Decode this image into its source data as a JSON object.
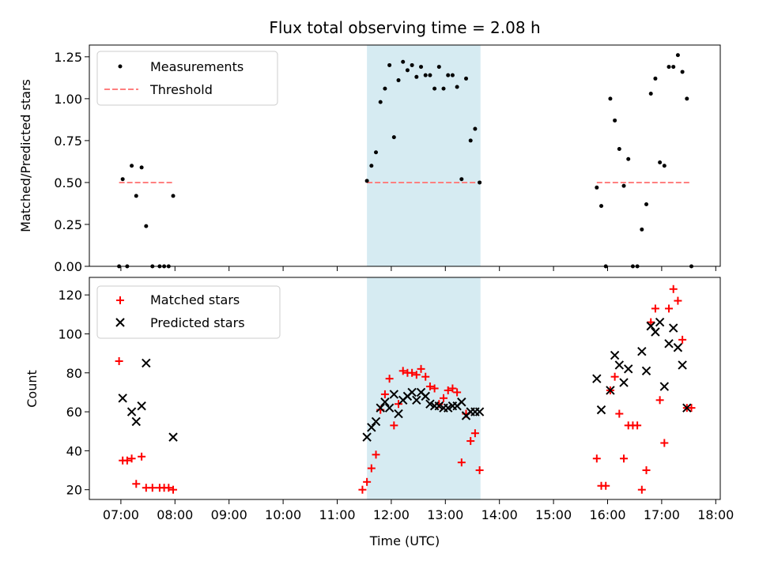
{
  "title": "Flux total observing time = 2.08 h",
  "colors": {
    "measurements": "#000000",
    "threshold": "#ff8080",
    "matched": "#ff0000",
    "predicted": "#000000",
    "window": "#add8e6"
  },
  "chart_data": [
    {
      "type": "scatter",
      "ylabel": "Matched/Predicted stars",
      "ylim": [
        0,
        1.32
      ],
      "yticks": [
        0.0,
        0.25,
        0.5,
        0.75,
        1.0,
        1.25
      ],
      "ytick_labels": [
        "0.00",
        "0.25",
        "0.50",
        "0.75",
        "1.00",
        "1.25"
      ],
      "legend_position": "top-left",
      "observing_window": {
        "start": "11:33",
        "end": "13:39"
      },
      "series": [
        {
          "name": "Measurements",
          "marker": "dot",
          "points": [
            [
              "06:58",
              0.0
            ],
            [
              "07:02",
              0.52
            ],
            [
              "07:07",
              0.0
            ],
            [
              "07:12",
              0.6
            ],
            [
              "07:17",
              0.42
            ],
            [
              "07:23",
              0.59
            ],
            [
              "07:28",
              0.24
            ],
            [
              "07:35",
              0.0
            ],
            [
              "07:43",
              0.0
            ],
            [
              "07:48",
              0.0
            ],
            [
              "07:53",
              0.0
            ],
            [
              "07:58",
              0.42
            ],
            [
              "11:33",
              0.51
            ],
            [
              "11:38",
              0.6
            ],
            [
              "11:43",
              0.68
            ],
            [
              "11:48",
              0.98
            ],
            [
              "11:53",
              1.06
            ],
            [
              "11:58",
              1.2
            ],
            [
              "12:03",
              0.77
            ],
            [
              "12:08",
              1.11
            ],
            [
              "12:13",
              1.22
            ],
            [
              "12:18",
              1.17
            ],
            [
              "12:23",
              1.2
            ],
            [
              "12:28",
              1.13
            ],
            [
              "12:33",
              1.19
            ],
            [
              "12:38",
              1.14
            ],
            [
              "12:43",
              1.14
            ],
            [
              "12:48",
              1.06
            ],
            [
              "12:53",
              1.19
            ],
            [
              "12:58",
              1.06
            ],
            [
              "13:03",
              1.14
            ],
            [
              "13:08",
              1.14
            ],
            [
              "13:13",
              1.07
            ],
            [
              "13:18",
              0.52
            ],
            [
              "13:23",
              1.12
            ],
            [
              "13:28",
              0.75
            ],
            [
              "13:33",
              0.82
            ],
            [
              "13:38",
              0.5
            ],
            [
              "15:48",
              0.47
            ],
            [
              "15:53",
              0.36
            ],
            [
              "15:58",
              0.0
            ],
            [
              "16:03",
              1.0
            ],
            [
              "16:08",
              0.87
            ],
            [
              "16:13",
              0.7
            ],
            [
              "16:18",
              0.48
            ],
            [
              "16:23",
              0.64
            ],
            [
              "16:28",
              0.0
            ],
            [
              "16:33",
              0.0
            ],
            [
              "16:38",
              0.22
            ],
            [
              "16:43",
              0.37
            ],
            [
              "16:48",
              1.03
            ],
            [
              "16:53",
              1.12
            ],
            [
              "16:58",
              0.62
            ],
            [
              "17:03",
              0.6
            ],
            [
              "17:08",
              1.19
            ],
            [
              "17:13",
              1.19
            ],
            [
              "17:18",
              1.26
            ],
            [
              "17:23",
              1.16
            ],
            [
              "17:28",
              1.0
            ],
            [
              "17:33",
              0.0
            ]
          ]
        },
        {
          "name": "Threshold",
          "marker": "dashed-line",
          "segments": [
            {
              "x": [
                "06:58",
                "07:58"
              ],
              "y": 0.5
            },
            {
              "x": [
                "11:33",
                "13:38"
              ],
              "y": 0.5
            },
            {
              "x": [
                "15:48",
                "17:33"
              ],
              "y": 0.5
            }
          ]
        }
      ]
    },
    {
      "type": "scatter",
      "xlabel": "Time (UTC)",
      "ylabel": "Count",
      "ylim": [
        15,
        129
      ],
      "yticks": [
        20,
        40,
        60,
        80,
        100,
        120
      ],
      "ytick_labels": [
        "20",
        "40",
        "60",
        "80",
        "100",
        "120"
      ],
      "xlim": [
        "06:25",
        "18:05"
      ],
      "xticks": [
        "07:00",
        "08:00",
        "09:00",
        "10:00",
        "11:00",
        "12:00",
        "13:00",
        "14:00",
        "15:00",
        "16:00",
        "17:00",
        "18:00"
      ],
      "legend_position": "top-left",
      "observing_window": {
        "start": "11:33",
        "end": "13:39"
      },
      "series": [
        {
          "name": "Matched stars",
          "marker": "plus",
          "points": [
            [
              "06:58",
              86
            ],
            [
              "07:02",
              35
            ],
            [
              "07:07",
              35
            ],
            [
              "07:12",
              36
            ],
            [
              "07:17",
              23
            ],
            [
              "07:23",
              37
            ],
            [
              "07:28",
              21
            ],
            [
              "07:35",
              21
            ],
            [
              "07:43",
              21
            ],
            [
              "07:48",
              21
            ],
            [
              "07:53",
              21
            ],
            [
              "07:58",
              20
            ],
            [
              "11:28",
              20
            ],
            [
              "11:33",
              24
            ],
            [
              "11:38",
              31
            ],
            [
              "11:43",
              38
            ],
            [
              "11:48",
              61
            ],
            [
              "11:53",
              69
            ],
            [
              "11:58",
              77
            ],
            [
              "12:03",
              53
            ],
            [
              "12:08",
              64
            ],
            [
              "12:13",
              81
            ],
            [
              "12:18",
              80
            ],
            [
              "12:23",
              80
            ],
            [
              "12:28",
              79
            ],
            [
              "12:33",
              82
            ],
            [
              "12:38",
              78
            ],
            [
              "12:43",
              73
            ],
            [
              "12:48",
              72
            ],
            [
              "12:53",
              64
            ],
            [
              "12:58",
              67
            ],
            [
              "13:03",
              71
            ],
            [
              "13:08",
              72
            ],
            [
              "13:13",
              70
            ],
            [
              "13:18",
              34
            ],
            [
              "13:23",
              59
            ],
            [
              "13:28",
              45
            ],
            [
              "13:33",
              49
            ],
            [
              "13:38",
              30
            ],
            [
              "15:48",
              36
            ],
            [
              "15:53",
              22
            ],
            [
              "15:58",
              22
            ],
            [
              "16:03",
              71
            ],
            [
              "16:08",
              78
            ],
            [
              "16:13",
              59
            ],
            [
              "16:18",
              36
            ],
            [
              "16:23",
              53
            ],
            [
              "16:28",
              53
            ],
            [
              "16:33",
              53
            ],
            [
              "16:38",
              20
            ],
            [
              "16:43",
              30
            ],
            [
              "16:48",
              106
            ],
            [
              "16:53",
              113
            ],
            [
              "16:58",
              66
            ],
            [
              "17:03",
              44
            ],
            [
              "17:08",
              113
            ],
            [
              "17:13",
              123
            ],
            [
              "17:18",
              117
            ],
            [
              "17:23",
              97
            ],
            [
              "17:28",
              62
            ],
            [
              "17:33",
              62
            ]
          ]
        },
        {
          "name": "Predicted stars",
          "marker": "x",
          "points": [
            [
              "07:02",
              67
            ],
            [
              "07:12",
              60
            ],
            [
              "07:17",
              55
            ],
            [
              "07:23",
              63
            ],
            [
              "07:28",
              85
            ],
            [
              "07:58",
              47
            ],
            [
              "11:33",
              47
            ],
            [
              "11:38",
              52
            ],
            [
              "11:43",
              55
            ],
            [
              "11:48",
              62
            ],
            [
              "11:53",
              65
            ],
            [
              "11:58",
              62
            ],
            [
              "12:03",
              69
            ],
            [
              "12:08",
              59
            ],
            [
              "12:13",
              66
            ],
            [
              "12:18",
              68
            ],
            [
              "12:23",
              70
            ],
            [
              "12:28",
              66
            ],
            [
              "12:33",
              70
            ],
            [
              "12:38",
              68
            ],
            [
              "12:43",
              64
            ],
            [
              "12:48",
              63
            ],
            [
              "12:53",
              63
            ],
            [
              "12:58",
              62
            ],
            [
              "13:03",
              62
            ],
            [
              "13:08",
              63
            ],
            [
              "13:13",
              63
            ],
            [
              "13:18",
              65
            ],
            [
              "13:23",
              58
            ],
            [
              "13:28",
              60
            ],
            [
              "13:33",
              60
            ],
            [
              "13:38",
              60
            ],
            [
              "15:48",
              77
            ],
            [
              "15:53",
              61
            ],
            [
              "16:03",
              71
            ],
            [
              "16:08",
              89
            ],
            [
              "16:13",
              84
            ],
            [
              "16:18",
              75
            ],
            [
              "16:23",
              82
            ],
            [
              "16:38",
              91
            ],
            [
              "16:43",
              81
            ],
            [
              "16:48",
              104
            ],
            [
              "16:53",
              101
            ],
            [
              "16:58",
              106
            ],
            [
              "17:03",
              73
            ],
            [
              "17:08",
              95
            ],
            [
              "17:13",
              103
            ],
            [
              "17:18",
              93
            ],
            [
              "17:23",
              84
            ],
            [
              "17:28",
              62
            ]
          ]
        }
      ]
    }
  ]
}
